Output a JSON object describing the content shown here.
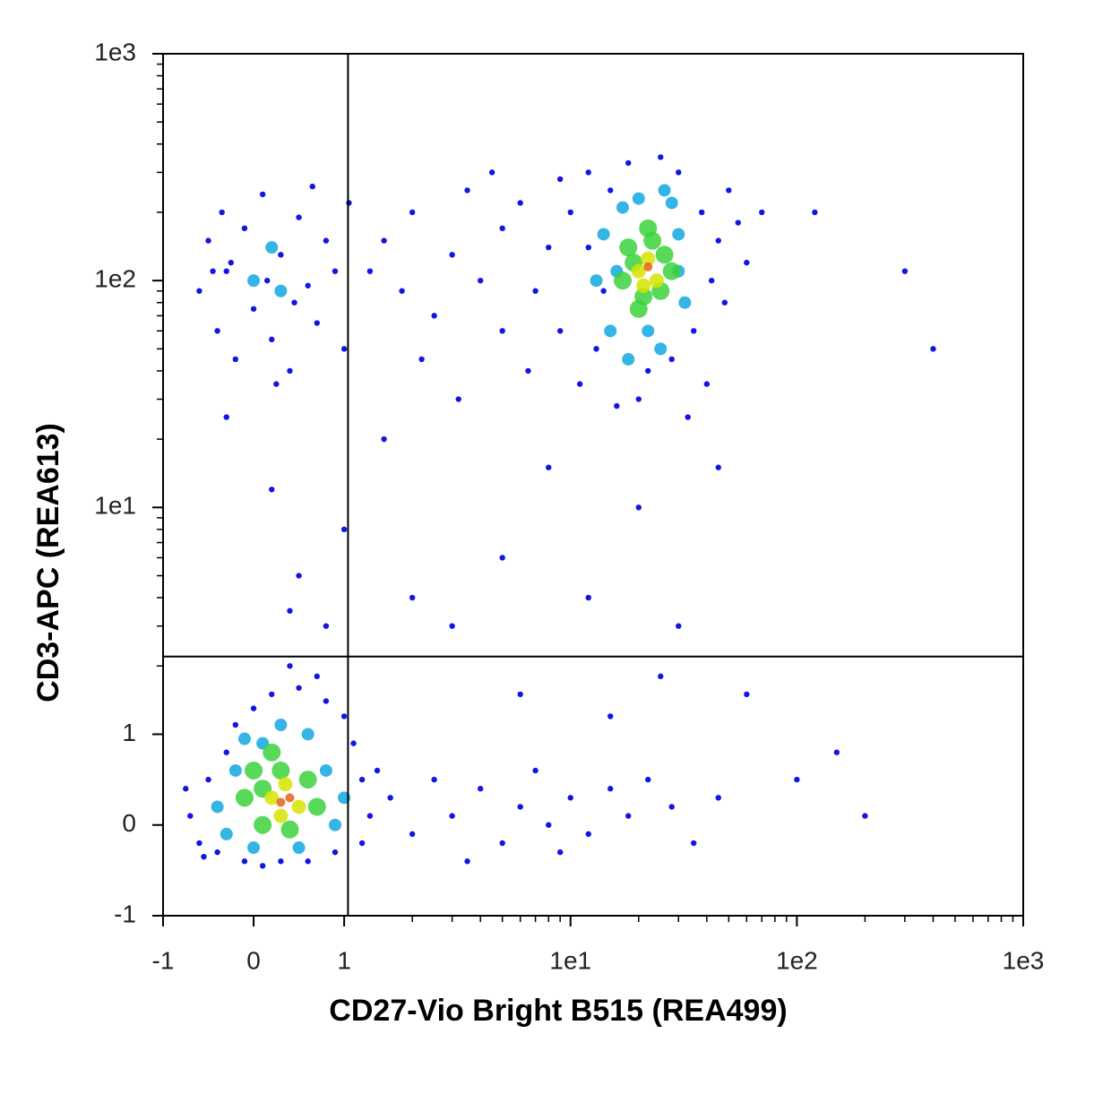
{
  "chart_data": {
    "type": "scatter",
    "x_label": "CD27-Vio Bright B515 (REA499)",
    "y_label": "CD3-APC (REA613)",
    "scale": "biexponential",
    "xlim": [
      -1,
      1000
    ],
    "ylim": [
      -1,
      1000
    ],
    "xticks": [
      -1,
      0,
      1,
      {
        "value": 10,
        "label": "1e1"
      },
      {
        "value": 100,
        "label": "1e2"
      },
      {
        "value": 1000,
        "label": "1e3"
      }
    ],
    "yticks": [
      -1,
      0,
      1,
      {
        "value": 10,
        "label": "1e1"
      },
      {
        "value": 100,
        "label": "1e2"
      },
      {
        "value": 1000,
        "label": "1e3"
      }
    ],
    "xminorticks": [
      2,
      3,
      4,
      5,
      6,
      7,
      8,
      9,
      20,
      30,
      40,
      50,
      60,
      70,
      80,
      90,
      200,
      300,
      400,
      500,
      600,
      700,
      800,
      900
    ],
    "yminorticks": [
      2,
      3,
      4,
      5,
      6,
      7,
      8,
      9,
      20,
      30,
      40,
      50,
      60,
      70,
      80,
      90,
      200,
      300,
      400,
      500,
      600,
      700,
      800,
      900
    ],
    "gates": {
      "x": 1.04,
      "y": 2.2
    },
    "series": [
      {
        "color": "#1414e6",
        "x": [
          -0.7,
          -0.6,
          -0.5,
          -0.4,
          -0.3,
          -0.2,
          -0.1,
          0.0,
          0.1,
          0.2,
          0.3,
          0.5,
          0.6,
          0.8,
          0.9,
          1.0,
          1.1,
          1.2,
          1.3,
          1.2,
          -0.75,
          -0.55,
          1.4,
          0.7,
          0.4,
          -0.6,
          -0.5,
          -0.4,
          -0.35,
          -0.3,
          -0.2,
          -0.1,
          0.0,
          0.1,
          0.2,
          0.3,
          0.4,
          0.5,
          0.6,
          0.7,
          0.8,
          0.9,
          1.0,
          1.05,
          -0.25,
          0.15,
          0.45,
          -0.45,
          0.65,
          0.25,
          1.5,
          1.8,
          2,
          2.5,
          3,
          3.5,
          4,
          5,
          5,
          6,
          7,
          8,
          9,
          2.2,
          3.2,
          6.5,
          4.5,
          1.3,
          9,
          10,
          11,
          12,
          13,
          15,
          16,
          18,
          20,
          22,
          25,
          28,
          30,
          35,
          38,
          42,
          45,
          48,
          40,
          33,
          50,
          55,
          60,
          70,
          12,
          14,
          1.6,
          2,
          2.5,
          3,
          4,
          5,
          6,
          7,
          8,
          10,
          12,
          15,
          18,
          22,
          28,
          35,
          45,
          3.5,
          9,
          0.5,
          0.2,
          1,
          1.5,
          2,
          3,
          5,
          8,
          12,
          20,
          30,
          45,
          -0.3,
          0.8,
          60,
          100,
          150,
          200,
          300,
          400,
          120,
          6,
          15,
          25,
          0.4
        ],
        "y": [
          0.1,
          -0.2,
          0.5,
          -0.3,
          0.8,
          1.1,
          -0.4,
          1.3,
          -0.45,
          1.5,
          -0.4,
          1.6,
          -0.4,
          1.4,
          -0.3,
          1.2,
          0.9,
          0.5,
          0.1,
          -0.2,
          0.4,
          -0.35,
          0.6,
          1.8,
          2.0,
          90,
          150,
          60,
          200,
          110,
          45,
          170,
          75,
          240,
          55,
          130,
          40,
          190,
          95,
          65,
          150,
          110,
          50,
          220,
          120,
          100,
          80,
          110,
          260,
          35,
          150,
          90,
          200,
          70,
          130,
          250,
          100,
          60,
          170,
          220,
          90,
          140,
          280,
          45,
          30,
          40,
          300,
          110,
          60,
          200,
          35,
          300,
          50,
          250,
          28,
          330,
          30,
          40,
          350,
          45,
          300,
          60,
          200,
          100,
          150,
          80,
          35,
          25,
          250,
          180,
          120,
          200,
          140,
          90,
          0.3,
          -0.1,
          0.5,
          0.1,
          0.4,
          -0.2,
          0.2,
          0.6,
          0,
          0.3,
          -0.1,
          0.4,
          0.1,
          0.5,
          0.2,
          -0.2,
          0.3,
          -0.4,
          -0.3,
          5,
          12,
          8,
          20,
          4,
          3,
          6,
          15,
          4,
          10,
          3,
          15,
          25,
          3,
          1.5,
          0.5,
          0.8,
          0.1,
          110,
          50,
          200,
          1.5,
          1.2,
          1.8,
          3.5
        ]
      },
      {
        "color": "#10a8e0",
        "x": [
          -0.4,
          -0.3,
          -0.2,
          0,
          0.1,
          0.3,
          0.6,
          0.8,
          0.9,
          0.5,
          1.0,
          -0.1,
          0.0,
          0.3,
          0.2,
          13,
          14,
          15,
          17,
          18,
          20,
          25,
          28,
          30,
          32,
          30,
          16,
          22,
          26
        ],
        "y": [
          0.2,
          -0.1,
          0.6,
          -0.25,
          0.9,
          1.1,
          1.0,
          0.6,
          0.0,
          -0.25,
          0.3,
          0.95,
          100,
          90,
          140,
          100,
          160,
          60,
          210,
          45,
          230,
          50,
          220,
          160,
          80,
          110,
          110,
          60,
          250
        ]
      },
      {
        "color": "#3cd23c",
        "x": [
          -0.1,
          0.0,
          0.1,
          0.2,
          0.4,
          0.6,
          0.7,
          0.3,
          0.1,
          17,
          18,
          20,
          22,
          25,
          26,
          28,
          19,
          23,
          21
        ],
        "y": [
          0.3,
          0.6,
          0.0,
          0.8,
          -0.05,
          0.5,
          0.2,
          0.6,
          0.4,
          100,
          140,
          75,
          170,
          90,
          130,
          110,
          120,
          150,
          85
        ]
      },
      {
        "color": "#d6e400",
        "x": [
          0.2,
          0.35,
          0.5,
          0.3,
          20,
          22,
          24,
          21
        ],
        "y": [
          0.3,
          0.45,
          0.2,
          0.1,
          110,
          125,
          100,
          95
        ]
      },
      {
        "color": "#e8601a",
        "x": [
          0.3,
          0.4,
          22
        ],
        "y": [
          0.25,
          0.3,
          115
        ]
      }
    ]
  }
}
